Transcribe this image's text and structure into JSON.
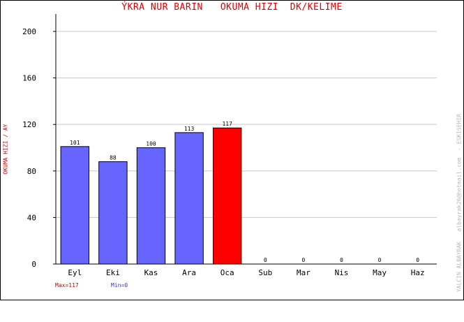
{
  "colors": {
    "bar": "#6666ff",
    "highlight_bar": "#ff0000",
    "title": "#e00000",
    "ylabel": "#cc0000",
    "max_label": "#cc0000",
    "min_label": "#3333ee",
    "grid": "#c8c8c8",
    "side_label": "#b8b8b8"
  },
  "chart_data": {
    "type": "bar",
    "title": "ÝKRA NUR BARIN   OKUMA HIZI  DK/KELIME",
    "xlabel": "",
    "ylabel": "OKUMA HIZI / AY",
    "categories": [
      "Eyl",
      "Eki",
      "Kas",
      "Ara",
      "Oca",
      "Sub",
      "Mar",
      "Nis",
      "May",
      "Haz"
    ],
    "values": [
      101,
      88,
      100,
      113,
      117,
      0,
      0,
      0,
      0,
      0
    ],
    "highlight_index": 4,
    "ylim": [
      0,
      215
    ],
    "yticks": [
      0,
      40,
      80,
      120,
      160,
      200
    ],
    "grid": true,
    "max_label": "Max=117",
    "min_label": "Min=0",
    "side_label": "YALCIN ALBAYRAK   albayrak26@hotmail.com  - ESKISEHIR"
  }
}
